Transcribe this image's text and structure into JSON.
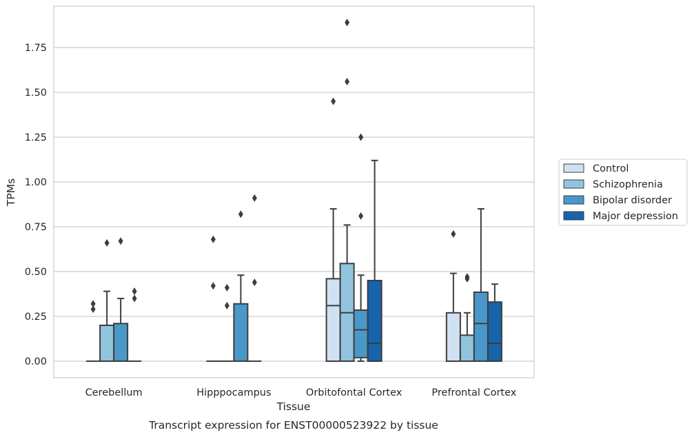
{
  "chart_data": {
    "type": "box",
    "title": "",
    "caption": "Transcript expression for ENST00000523922 by tissue",
    "xlabel": "Tissue",
    "ylabel": "TPMs",
    "ylim": [
      -0.09,
      1.98
    ],
    "yticks": [
      "0.00",
      "0.25",
      "0.50",
      "0.75",
      "1.00",
      "1.25",
      "1.50",
      "1.75"
    ],
    "grid": "horizontal",
    "legend_position": "right",
    "categories": [
      "Cerebellum",
      "Hipppocampus",
      "Orbitofontal Cortex",
      "Prefrontal Cortex"
    ],
    "series": [
      {
        "name": "Control",
        "color": "#cfe1f2",
        "boxes": [
          {
            "min": 0,
            "q1": 0,
            "median": 0,
            "q3": 0,
            "max": 0,
            "outliers": [
              0.29,
              0.32
            ]
          },
          {
            "min": 0,
            "q1": 0,
            "median": 0,
            "q3": 0,
            "max": 0,
            "outliers": [
              0.42,
              0.68
            ]
          },
          {
            "min": 0,
            "q1": 0,
            "median": 0.31,
            "q3": 0.46,
            "max": 0.85,
            "outliers": [
              1.45
            ]
          },
          {
            "min": 0,
            "q1": 0,
            "median": 0,
            "q3": 0.27,
            "max": 0.49,
            "outliers": [
              0.71
            ]
          }
        ]
      },
      {
        "name": "Schizophrenia",
        "color": "#93c4de",
        "boxes": [
          {
            "min": 0,
            "q1": 0,
            "median": 0,
            "q3": 0.2,
            "max": 0.39,
            "outliers": [
              0.66
            ]
          },
          {
            "min": 0,
            "q1": 0,
            "median": 0,
            "q3": 0,
            "max": 0,
            "outliers": [
              0.31,
              0.41
            ]
          },
          {
            "min": 0,
            "q1": 0,
            "median": 0.27,
            "q3": 0.545,
            "max": 0.76,
            "outliers": [
              1.56,
              1.89
            ]
          },
          {
            "min": 0,
            "q1": 0,
            "median": 0,
            "q3": 0.145,
            "max": 0.27,
            "outliers": [
              0.46,
              0.47
            ]
          }
        ]
      },
      {
        "name": "Bipolar disorder",
        "color": "#4a98c9",
        "boxes": [
          {
            "min": 0,
            "q1": 0,
            "median": 0,
            "q3": 0.21,
            "max": 0.35,
            "outliers": [
              0.67
            ]
          },
          {
            "min": 0,
            "q1": 0,
            "median": 0,
            "q3": 0.32,
            "max": 0.48,
            "outliers": [
              0.82
            ]
          },
          {
            "min": 0,
            "q1": 0.02,
            "median": 0.175,
            "q3": 0.285,
            "max": 0.48,
            "outliers": [
              0.81,
              1.25
            ]
          },
          {
            "min": 0,
            "q1": 0,
            "median": 0.21,
            "q3": 0.385,
            "max": 0.85,
            "outliers": []
          }
        ]
      },
      {
        "name": "Major depression",
        "color": "#1764ab",
        "boxes": [
          {
            "min": 0,
            "q1": 0,
            "median": 0,
            "q3": 0,
            "max": 0,
            "outliers": [
              0.35,
              0.39
            ]
          },
          {
            "min": 0,
            "q1": 0,
            "median": 0,
            "q3": 0,
            "max": 0,
            "outliers": [
              0.44,
              0.91
            ]
          },
          {
            "min": 0,
            "q1": 0,
            "median": 0.1,
            "q3": 0.45,
            "max": 1.12,
            "outliers": []
          },
          {
            "min": 0,
            "q1": 0,
            "median": 0.1,
            "q3": 0.33,
            "max": 0.43,
            "outliers": []
          }
        ]
      }
    ]
  }
}
